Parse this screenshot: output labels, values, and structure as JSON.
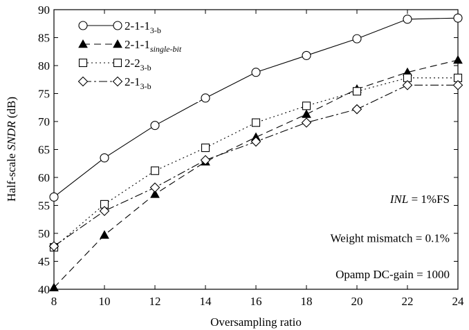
{
  "chart_data": {
    "type": "line",
    "xlabel": "Oversampling ratio",
    "ylabel_parts": {
      "prefix": "Half-scale ",
      "italic": "SNDR",
      "suffix": " (dB)"
    },
    "xlim": [
      8,
      24
    ],
    "ylim": [
      40,
      90
    ],
    "xticks": [
      8,
      10,
      12,
      14,
      16,
      18,
      20,
      22,
      24
    ],
    "yticks": [
      40,
      45,
      50,
      55,
      60,
      65,
      70,
      75,
      80,
      85,
      90
    ],
    "grid": false,
    "legend_position": "top-left",
    "x": [
      8,
      10,
      12,
      14,
      16,
      18,
      20,
      22,
      24
    ],
    "series": [
      {
        "name_main": "2-1-1",
        "name_sub": "3-b",
        "sub_italic": false,
        "marker": "circle",
        "line": "solid",
        "values": [
          56.5,
          63.5,
          69.3,
          74.2,
          78.8,
          81.8,
          84.8,
          88.3,
          88.5
        ]
      },
      {
        "name_main": "2-1-1",
        "name_sub": "single-bit",
        "sub_italic": true,
        "marker": "triangle",
        "line": "longdash",
        "values": [
          40.3,
          49.7,
          57.0,
          62.8,
          67.2,
          71.3,
          75.8,
          78.8,
          81.0
        ]
      },
      {
        "name_main": "2-2",
        "name_sub": "3-b",
        "sub_italic": false,
        "marker": "square",
        "line": "dotted",
        "values": [
          47.5,
          55.2,
          61.2,
          65.3,
          69.8,
          72.8,
          75.4,
          77.8,
          77.8
        ]
      },
      {
        "name_main": "2-1",
        "name_sub": "3-b",
        "sub_italic": false,
        "marker": "diamond",
        "line": "dashdot",
        "values": [
          47.7,
          54.0,
          58.2,
          63.1,
          66.4,
          69.8,
          72.2,
          76.5,
          76.5
        ]
      }
    ],
    "annotations": [
      {
        "italic": "INL",
        "text": " = 1%FS"
      },
      {
        "italic": "",
        "text": "Weight mismatch = 0.1%"
      },
      {
        "italic": "",
        "text": "Opamp DC-gain = 1000"
      }
    ]
  }
}
